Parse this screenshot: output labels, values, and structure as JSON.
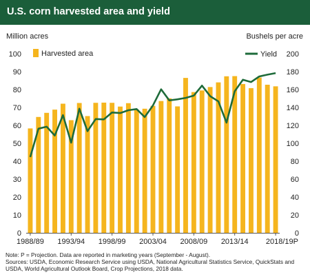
{
  "header": {
    "title": "U.S. corn harvested area and yield"
  },
  "colors": {
    "header_bg": "#1b5e3a",
    "bar": "#f5b51e",
    "line": "#1e6b3a",
    "text": "#222222"
  },
  "chart_data": {
    "type": "bar",
    "title": "U.S. corn harvested area and yield",
    "y_left_label": "Million acres",
    "y_right_label": "Bushels per acre",
    "y_left_lim": [
      0,
      100
    ],
    "y_right_lim": [
      0,
      200
    ],
    "y_left_ticks": [
      "0",
      "10",
      "20",
      "30",
      "40",
      "50",
      "60",
      "70",
      "80",
      "90",
      "100"
    ],
    "y_right_ticks": [
      "0",
      "20",
      "40",
      "60",
      "80",
      "100",
      "120",
      "140",
      "160",
      "180",
      "200"
    ],
    "x_tick_labels": [
      "1988/89",
      "1993/94",
      "1998/99",
      "2003/04",
      "2008/09",
      "2013/14",
      "2018/19P"
    ],
    "legend_position": "top-left and top-right",
    "grid": "none",
    "categories": [
      "1988/89",
      "1989/90",
      "1990/91",
      "1991/92",
      "1992/93",
      "1993/94",
      "1994/95",
      "1995/96",
      "1996/97",
      "1997/98",
      "1998/99",
      "1999/00",
      "2000/01",
      "2001/02",
      "2002/03",
      "2003/04",
      "2004/05",
      "2005/06",
      "2006/07",
      "2007/08",
      "2008/09",
      "2009/10",
      "2010/11",
      "2011/12",
      "2012/13",
      "2013/14",
      "2014/15",
      "2015/16",
      "2016/17",
      "2017/18",
      "2018/19P"
    ],
    "series": [
      {
        "name": "Harvested area",
        "type": "bar",
        "axis": "left",
        "values": [
          58.3,
          64.7,
          67.0,
          68.8,
          72.1,
          62.9,
          72.5,
          65.2,
          72.6,
          72.7,
          72.6,
          70.5,
          72.4,
          68.8,
          69.3,
          70.9,
          73.6,
          75.1,
          70.6,
          86.5,
          78.6,
          79.5,
          81.4,
          84.0,
          87.4,
          87.5,
          83.1,
          80.8,
          86.7,
          82.7,
          81.8
        ]
      },
      {
        "name": "Yield",
        "type": "line",
        "axis": "right",
        "values": [
          84.6,
          116.3,
          118.5,
          108.6,
          131.5,
          100.7,
          138.6,
          113.5,
          127.1,
          126.7,
          134.4,
          133.8,
          136.9,
          138.2,
          129.3,
          142.2,
          160.3,
          147.9,
          149.1,
          150.7,
          153.3,
          164.4,
          152.6,
          146.8,
          123.1,
          158.1,
          171.0,
          168.4,
          174.6,
          176.6,
          178.4
        ]
      }
    ]
  },
  "footer": {
    "note": "Note: P = Projection. Data are reported in marketing years (September - August).",
    "sources_line1": "Sources: USDA, Economic Research Service using USDA, National Agricultural Statistics Service, QuickStats and",
    "sources_line2": "USDA, World Agricultural Outlook Board, Crop Projections, 2018 data."
  }
}
